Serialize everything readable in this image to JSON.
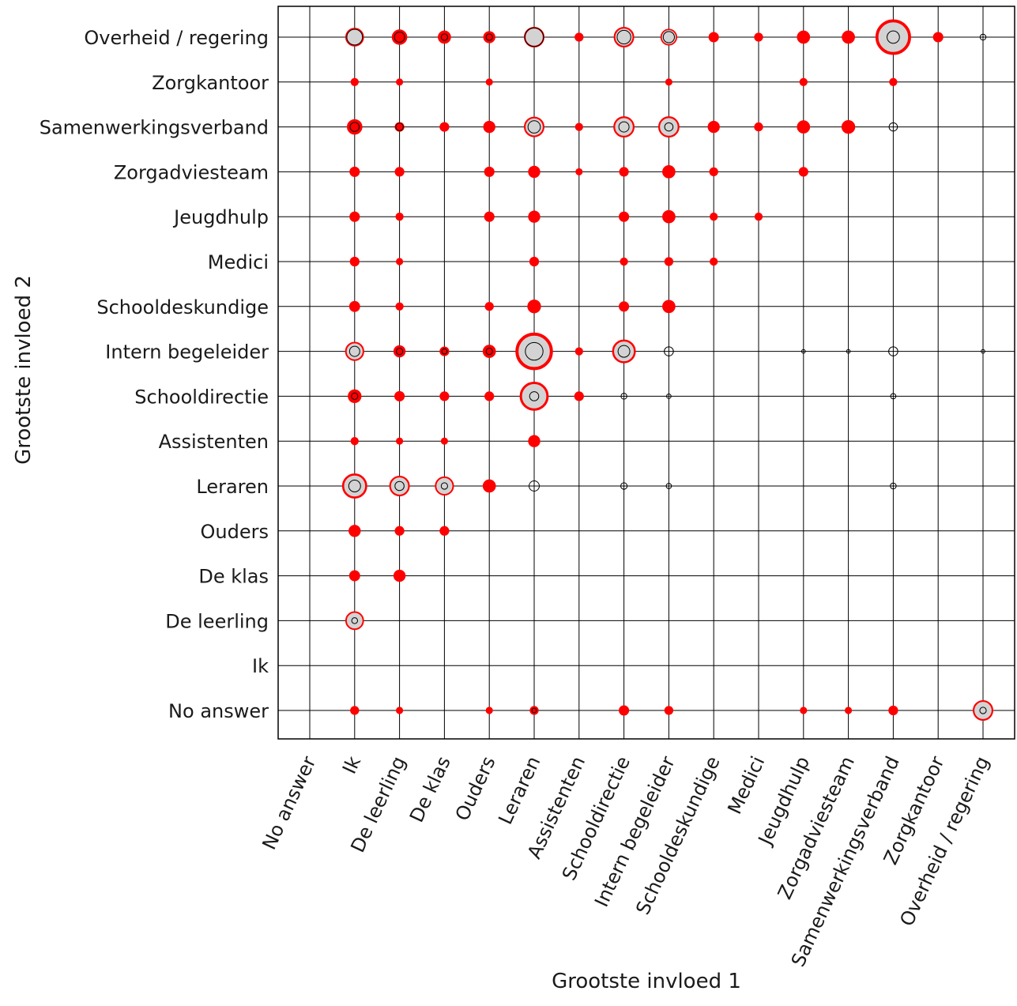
{
  "chart_data": {
    "type": "scatter",
    "xlabel": "Grootste invloed 1",
    "ylabel": "Grootste invloed 2",
    "categories": [
      "No answer",
      "Ik",
      "De leerling",
      "De klas",
      "Ouders",
      "Leraren",
      "Assistenten",
      "Schooldirectie",
      "Intern begeleider",
      "Schooldeskundige",
      "Medici",
      "Jeugdhulp",
      "Zorgadviesteam",
      "Samenwerkingsverband",
      "Zorgkantoor",
      "Overheid / regering"
    ],
    "x_categories": [
      "No answer",
      "Ik",
      "De leerling",
      "De klas",
      "Ouders",
      "Leraren",
      "Assistenten",
      "Schooldirectie",
      "Intern begeleider",
      "Schooldeskundige",
      "Medici",
      "Jeugdhulp",
      "Zorgadviesteam",
      "Samenwerkingsverband",
      "Zorgkantoor",
      "Overheid / regering"
    ],
    "y_categories": [
      "No answer",
      "Ik",
      "De leerling",
      "De klas",
      "Ouders",
      "Leraren",
      "Assistenten",
      "Schooldirectie",
      "Intern begeleider",
      "Schooldeskundige",
      "Medici",
      "Jeugdhulp",
      "Zorgadviesteam",
      "Samenwerkingsverband",
      "Zorgkantoor",
      "Overheid / regering"
    ],
    "grid": true,
    "colors": {
      "red_series": "#ff0000",
      "black_series": "#000000",
      "fill": "#d3d3d3"
    },
    "series": [
      {
        "marker": "red-circle",
        "points": [
          {
            "x": "Ik",
            "y": "Overheid / regering",
            "v": 2.5
          },
          {
            "x": "De leerling",
            "y": "Overheid / regering",
            "v": 1.7
          },
          {
            "x": "De klas",
            "y": "Overheid / regering",
            "v": 1.2
          },
          {
            "x": "Ouders",
            "y": "Overheid / regering",
            "v": 1
          },
          {
            "x": "Leraren",
            "y": "Overheid / regering",
            "v": 3
          },
          {
            "x": "Assistenten",
            "y": "Overheid / regering",
            "v": 0.5
          },
          {
            "x": "Schooldirectie",
            "y": "Overheid / regering",
            "v": 3
          },
          {
            "x": "Intern begeleider",
            "y": "Overheid / regering",
            "v": 2
          },
          {
            "x": "Schooldeskundige",
            "y": "Overheid / regering",
            "v": 0.7
          },
          {
            "x": "Medici",
            "y": "Overheid / regering",
            "v": 0.5
          },
          {
            "x": "Jeugdhulp",
            "y": "Overheid / regering",
            "v": 1.2
          },
          {
            "x": "Zorgadviesteam",
            "y": "Overheid / regering",
            "v": 1.2
          },
          {
            "x": "Samenwerkingsverband",
            "y": "Overheid / regering",
            "v": 9
          },
          {
            "x": "Zorgkantoor",
            "y": "Overheid / regering",
            "v": 0.7
          },
          {
            "x": "Ik",
            "y": "Zorgkantoor",
            "v": 0.4
          },
          {
            "x": "De leerling",
            "y": "Zorgkantoor",
            "v": 0.3
          },
          {
            "x": "Ouders",
            "y": "Zorgkantoor",
            "v": 0.3
          },
          {
            "x": "Intern begeleider",
            "y": "Zorgkantoor",
            "v": 0.3
          },
          {
            "x": "Jeugdhulp",
            "y": "Zorgkantoor",
            "v": 0.4
          },
          {
            "x": "Samenwerkingsverband",
            "y": "Zorgkantoor",
            "v": 0.4
          },
          {
            "x": "Ik",
            "y": "Samenwerkingsverband",
            "v": 1.7
          },
          {
            "x": "De leerling",
            "y": "Samenwerkingsverband",
            "v": 0.6
          },
          {
            "x": "De klas",
            "y": "Samenwerkingsverband",
            "v": 0.6
          },
          {
            "x": "Ouders",
            "y": "Samenwerkingsverband",
            "v": 1
          },
          {
            "x": "Leraren",
            "y": "Samenwerkingsverband",
            "v": 3
          },
          {
            "x": "Assistenten",
            "y": "Samenwerkingsverband",
            "v": 0.4
          },
          {
            "x": "Schooldirectie",
            "y": "Samenwerkingsverband",
            "v": 3.2
          },
          {
            "x": "Intern begeleider",
            "y": "Samenwerkingsverband",
            "v": 3.2
          },
          {
            "x": "Schooldeskundige",
            "y": "Samenwerkingsverband",
            "v": 1
          },
          {
            "x": "Medici",
            "y": "Samenwerkingsverband",
            "v": 0.5
          },
          {
            "x": "Jeugdhulp",
            "y": "Samenwerkingsverband",
            "v": 1.2
          },
          {
            "x": "Zorgadviesteam",
            "y": "Samenwerkingsverband",
            "v": 1.3
          },
          {
            "x": "Ik",
            "y": "Zorgadviesteam",
            "v": 0.7
          },
          {
            "x": "De leerling",
            "y": "Zorgadviesteam",
            "v": 0.6
          },
          {
            "x": "Ouders",
            "y": "Zorgadviesteam",
            "v": 0.7
          },
          {
            "x": "Leraren",
            "y": "Zorgadviesteam",
            "v": 1
          },
          {
            "x": "Assistenten",
            "y": "Zorgadviesteam",
            "v": 0.3
          },
          {
            "x": "Schooldirectie",
            "y": "Zorgadviesteam",
            "v": 0.6
          },
          {
            "x": "Intern begeleider",
            "y": "Zorgadviesteam",
            "v": 1.2
          },
          {
            "x": "Schooldeskundige",
            "y": "Zorgadviesteam",
            "v": 0.5
          },
          {
            "x": "Jeugdhulp",
            "y": "Zorgadviesteam",
            "v": 0.6
          },
          {
            "x": "Ik",
            "y": "Jeugdhulp",
            "v": 0.7
          },
          {
            "x": "De leerling",
            "y": "Jeugdhulp",
            "v": 0.4
          },
          {
            "x": "Ouders",
            "y": "Jeugdhulp",
            "v": 0.7
          },
          {
            "x": "Leraren",
            "y": "Jeugdhulp",
            "v": 1
          },
          {
            "x": "Schooldirectie",
            "y": "Jeugdhulp",
            "v": 0.7
          },
          {
            "x": "Intern begeleider",
            "y": "Jeugdhulp",
            "v": 1.2
          },
          {
            "x": "Schooldeskundige",
            "y": "Jeugdhulp",
            "v": 0.4
          },
          {
            "x": "Medici",
            "y": "Jeugdhulp",
            "v": 0.4
          },
          {
            "x": "Ik",
            "y": "Medici",
            "v": 0.6
          },
          {
            "x": "De leerling",
            "y": "Medici",
            "v": 0.3
          },
          {
            "x": "Leraren",
            "y": "Medici",
            "v": 0.6
          },
          {
            "x": "Schooldirectie",
            "y": "Medici",
            "v": 0.4
          },
          {
            "x": "Intern begeleider",
            "y": "Medici",
            "v": 0.5
          },
          {
            "x": "Schooldeskundige",
            "y": "Medici",
            "v": 0.4
          },
          {
            "x": "Ik",
            "y": "Schooldeskundige",
            "v": 0.8
          },
          {
            "x": "De leerling",
            "y": "Schooldeskundige",
            "v": 0.4
          },
          {
            "x": "Ouders",
            "y": "Schooldeskundige",
            "v": 0.5
          },
          {
            "x": "Leraren",
            "y": "Schooldeskundige",
            "v": 1.3
          },
          {
            "x": "Schooldirectie",
            "y": "Schooldeskundige",
            "v": 0.7
          },
          {
            "x": "Intern begeleider",
            "y": "Schooldeskundige",
            "v": 1.2
          },
          {
            "x": "Ik",
            "y": "Intern begeleider",
            "v": 2.6
          },
          {
            "x": "De leerling",
            "y": "Intern begeleider",
            "v": 1
          },
          {
            "x": "De klas",
            "y": "Intern begeleider",
            "v": 0.6
          },
          {
            "x": "Ouders",
            "y": "Intern begeleider",
            "v": 1.2
          },
          {
            "x": "Leraren",
            "y": "Intern begeleider",
            "v": 10
          },
          {
            "x": "Assistenten",
            "y": "Intern begeleider",
            "v": 0.4
          },
          {
            "x": "Schooldirectie",
            "y": "Intern begeleider",
            "v": 4
          },
          {
            "x": "Ik",
            "y": "Schooldirectie",
            "v": 1.3
          },
          {
            "x": "De leerling",
            "y": "Schooldirectie",
            "v": 0.7
          },
          {
            "x": "De klas",
            "y": "Schooldirectie",
            "v": 0.6
          },
          {
            "x": "Ouders",
            "y": "Schooldirectie",
            "v": 0.6
          },
          {
            "x": "Leraren",
            "y": "Schooldirectie",
            "v": 6
          },
          {
            "x": "Assistenten",
            "y": "Schooldirectie",
            "v": 0.6
          },
          {
            "x": "Ik",
            "y": "Assistenten",
            "v": 0.4
          },
          {
            "x": "De leerling",
            "y": "Assistenten",
            "v": 0.3
          },
          {
            "x": "De klas",
            "y": "Assistenten",
            "v": 0.3
          },
          {
            "x": "Leraren",
            "y": "Assistenten",
            "v": 1
          },
          {
            "x": "Ik",
            "y": "Leraren",
            "v": 4.5
          },
          {
            "x": "De leerling",
            "y": "Leraren",
            "v": 3
          },
          {
            "x": "De klas",
            "y": "Leraren",
            "v": 2.6
          },
          {
            "x": "Ouders",
            "y": "Leraren",
            "v": 1.2
          },
          {
            "x": "Ik",
            "y": "Ouders",
            "v": 1
          },
          {
            "x": "De leerling",
            "y": "Ouders",
            "v": 0.6
          },
          {
            "x": "De klas",
            "y": "Ouders",
            "v": 0.6
          },
          {
            "x": "Ik",
            "y": "De klas",
            "v": 0.8
          },
          {
            "x": "De leerling",
            "y": "De klas",
            "v": 1
          },
          {
            "x": "Ik",
            "y": "De leerling",
            "v": 2.5
          },
          {
            "x": "Ik",
            "y": "No answer",
            "v": 0.5
          },
          {
            "x": "De leerling",
            "y": "No answer",
            "v": 0.3
          },
          {
            "x": "Ouders",
            "y": "No answer",
            "v": 0.3
          },
          {
            "x": "Leraren",
            "y": "No answer",
            "v": 0.5
          },
          {
            "x": "Schooldirectie",
            "y": "No answer",
            "v": 0.7
          },
          {
            "x": "Intern begeleider",
            "y": "No answer",
            "v": 0.5
          },
          {
            "x": "Jeugdhulp",
            "y": "No answer",
            "v": 0.3
          },
          {
            "x": "Zorgadviesteam",
            "y": "No answer",
            "v": 0.3
          },
          {
            "x": "Samenwerkingsverband",
            "y": "No answer",
            "v": 0.6
          },
          {
            "x": "Overheid / regering",
            "y": "No answer",
            "v": 3
          }
        ]
      },
      {
        "marker": "black-circle",
        "points": [
          {
            "x": "Ik",
            "y": "Overheid / regering",
            "v": 3.5
          },
          {
            "x": "De leerling",
            "y": "Overheid / regering",
            "v": 1.5
          },
          {
            "x": "De klas",
            "y": "Overheid / regering",
            "v": 0.6
          },
          {
            "x": "Ouders",
            "y": "Overheid / regering",
            "v": 0.6
          },
          {
            "x": "Leraren",
            "y": "Overheid / regering",
            "v": 5
          },
          {
            "x": "Schooldirectie",
            "y": "Overheid / regering",
            "v": 2.7
          },
          {
            "x": "Intern begeleider",
            "y": "Overheid / regering",
            "v": 1.8
          },
          {
            "x": "Samenwerkingsverband",
            "y": "Overheid / regering",
            "v": 2.2
          },
          {
            "x": "Overheid / regering",
            "y": "Overheid / regering",
            "v": 0.5
          },
          {
            "x": "Ik",
            "y": "Samenwerkingsverband",
            "v": 1.2
          },
          {
            "x": "De leerling",
            "y": "Samenwerkingsverband",
            "v": 0.8
          },
          {
            "x": "Leraren",
            "y": "Samenwerkingsverband",
            "v": 2.2
          },
          {
            "x": "Schooldirectie",
            "y": "Samenwerkingsverband",
            "v": 1.5
          },
          {
            "x": "Intern begeleider",
            "y": "Samenwerkingsverband",
            "v": 1
          },
          {
            "x": "Samenwerkingsverband",
            "y": "Samenwerkingsverband",
            "v": 1
          },
          {
            "x": "Ik",
            "y": "Intern begeleider",
            "v": 1.5
          },
          {
            "x": "De leerling",
            "y": "Intern begeleider",
            "v": 0.6
          },
          {
            "x": "De klas",
            "y": "Intern begeleider",
            "v": 0.4
          },
          {
            "x": "Ouders",
            "y": "Intern begeleider",
            "v": 0.6
          },
          {
            "x": "Leraren",
            "y": "Intern begeleider",
            "v": 4.5
          },
          {
            "x": "Schooldirectie",
            "y": "Intern begeleider",
            "v": 2
          },
          {
            "x": "Intern begeleider",
            "y": "Intern begeleider",
            "v": 1.2
          },
          {
            "x": "Jeugdhulp",
            "y": "Intern begeleider",
            "v": 0.2
          },
          {
            "x": "Zorgadviesteam",
            "y": "Intern begeleider",
            "v": 0.2
          },
          {
            "x": "Samenwerkingsverband",
            "y": "Intern begeleider",
            "v": 1.2
          },
          {
            "x": "Overheid / regering",
            "y": "Intern begeleider",
            "v": 0.2
          },
          {
            "x": "Ik",
            "y": "Schooldirectie",
            "v": 0.6
          },
          {
            "x": "Leraren",
            "y": "Schooldirectie",
            "v": 1.2
          },
          {
            "x": "Schooldirectie",
            "y": "Schooldirectie",
            "v": 0.5
          },
          {
            "x": "Intern begeleider",
            "y": "Schooldirectie",
            "v": 0.3
          },
          {
            "x": "Samenwerkingsverband",
            "y": "Schooldirectie",
            "v": 0.4
          },
          {
            "x": "Ik",
            "y": "Leraren",
            "v": 2
          },
          {
            "x": "De leerling",
            "y": "Leraren",
            "v": 1.2
          },
          {
            "x": "De klas",
            "y": "Leraren",
            "v": 0.6
          },
          {
            "x": "Leraren",
            "y": "Leraren",
            "v": 1.5
          },
          {
            "x": "Schooldirectie",
            "y": "Leraren",
            "v": 0.6
          },
          {
            "x": "Intern begeleider",
            "y": "Leraren",
            "v": 0.4
          },
          {
            "x": "Samenwerkingsverband",
            "y": "Leraren",
            "v": 0.5
          },
          {
            "x": "Ik",
            "y": "De leerling",
            "v": 0.5
          },
          {
            "x": "Leraren",
            "y": "No answer",
            "v": 0.3
          },
          {
            "x": "Overheid / regering",
            "y": "No answer",
            "v": 0.6
          }
        ]
      }
    ]
  }
}
